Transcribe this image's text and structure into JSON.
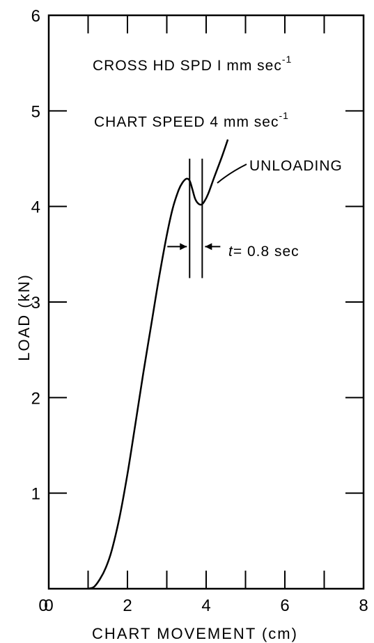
{
  "chart_data": {
    "type": "line",
    "xlabel": "CHART MOVEMENT (cm)",
    "ylabel": "LOAD (kN)",
    "xlim": [
      0,
      8
    ],
    "ylim": [
      0,
      6
    ],
    "x_ticks": [
      0,
      2,
      4,
      6,
      8
    ],
    "y_ticks": [
      1,
      2,
      3,
      4,
      5,
      6
    ],
    "x_tick_labels": [
      "0",
      "2",
      "4",
      "6",
      "8"
    ],
    "y_tick_labels": [
      "1",
      "2",
      "3",
      "4",
      "5",
      "6"
    ],
    "grid": false,
    "series": [
      {
        "x": [
          1.0,
          1.15,
          1.3,
          1.45,
          1.6,
          1.8,
          2.0,
          2.2,
          2.4,
          2.6,
          2.8,
          3.0,
          3.15,
          3.3,
          3.4,
          3.5,
          3.58,
          3.65,
          3.72,
          3.8,
          3.88,
          3.95,
          4.05,
          4.2,
          4.4,
          4.55
        ],
        "y": [
          0.0,
          0.02,
          0.1,
          0.22,
          0.4,
          0.75,
          1.2,
          1.72,
          2.25,
          2.75,
          3.25,
          3.7,
          3.98,
          4.17,
          4.25,
          4.29,
          4.27,
          4.18,
          4.08,
          4.03,
          4.02,
          4.05,
          4.13,
          4.3,
          4.52,
          4.7
        ]
      }
    ],
    "annotations": {
      "cross_hd_spd": {
        "label": "CROSS HD SPD  I mm sec",
        "exponent": "-1"
      },
      "chart_speed": {
        "label": "CHART  SPEED  4 mm sec",
        "exponent": "-1"
      },
      "unloading": "UNLOADING",
      "time_interval": {
        "symbol": "t",
        "value": "= 0.8 sec",
        "x_start": 3.58,
        "x_end": 3.9
      }
    }
  }
}
